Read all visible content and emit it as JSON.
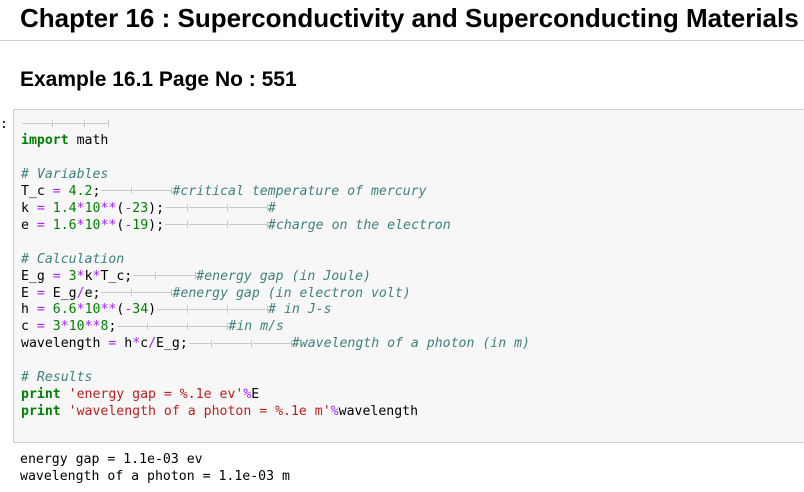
{
  "chapter_title": "Chapter 16 : Superconductivity and Superconducting Materials",
  "example_title": "Example 16.1 Page No : 551",
  "prompt": ":",
  "code": {
    "import_kw": "import",
    "import_mod": " math",
    "c_variables": "# Variables",
    "tc_a": "T_c ",
    "tc_num": "4.2",
    "tc_cm": "#critical temperature of mercury",
    "k_a": "k ",
    "k_n1": "1.4",
    "k_n2": "10",
    "k_n3": "23",
    "k_cm": "#",
    "e_a": "e ",
    "e_n1": "1.6",
    "e_n2": "10",
    "e_n3": "19",
    "e_cm": "#charge on the electron",
    "c_calculation": "# Calculation",
    "eg_a": "E_g ",
    "eg_n": "3",
    "eg_b": "k",
    "eg_c": "T_c;",
    "eg_cm": "#energy gap (in Joule)",
    "E_a": "E ",
    "E_b": " E_g",
    "E_c": "e;",
    "E_cm": "#energy gap (in electron volt)",
    "h_a": "h ",
    "h_n1": "6.6",
    "h_n2": "10",
    "h_n3": "34",
    "h_cm": "# in J-s",
    "c_a": "c ",
    "c_n1": "3",
    "c_n2": "10",
    "c_n3": "8",
    "c_cm": "#in m/s",
    "w_a": "wavelength ",
    "w_b": " h",
    "w_c": "c",
    "w_d": "E_g;",
    "w_cm": "#wavelength of a photon (in m)",
    "c_results": "# Results",
    "p1_kw": "print",
    "p1_str": "'energy gap = %.1e ev'",
    "p1_var": "E",
    "p2_kw": "print",
    "p2_str": "'wavelength of a photon = %.1e m'",
    "p2_var": "wavelength"
  },
  "output_lines": [
    "energy gap = 1.1e-03 ev",
    "wavelength of a photon = 1.1e-03 m"
  ]
}
